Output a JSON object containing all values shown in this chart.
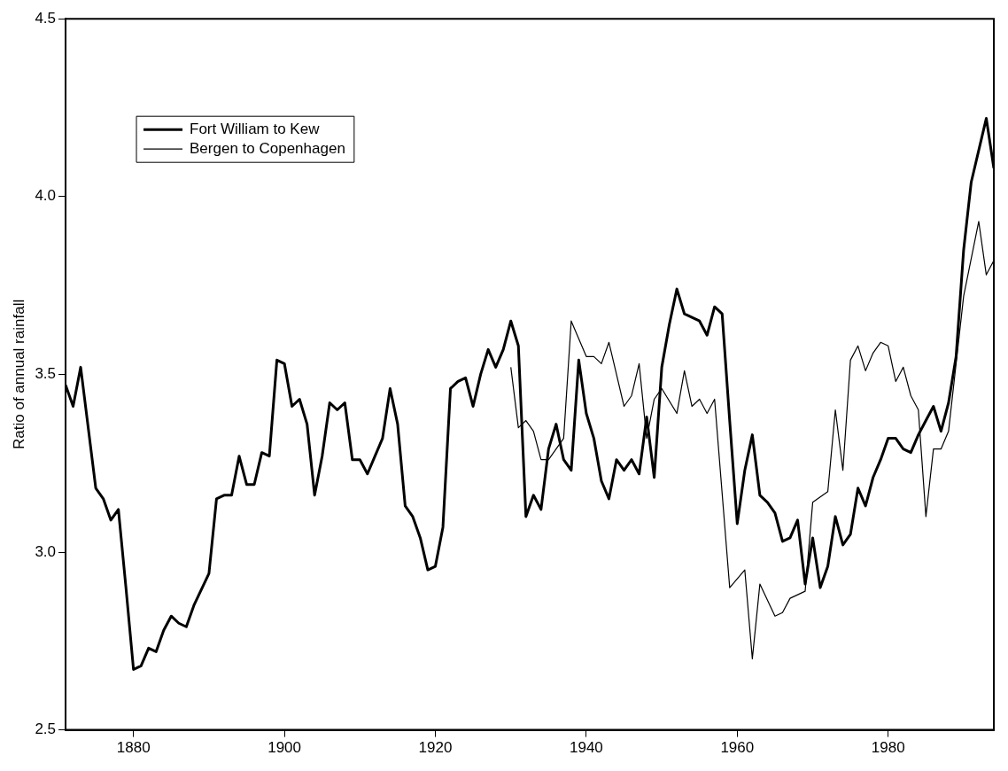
{
  "chart_data": {
    "type": "line",
    "ylabel": "Ratio of annual rainfall",
    "xlim": [
      1871,
      1994
    ],
    "xticks": [
      1880,
      1900,
      1920,
      1940,
      1960,
      1980
    ],
    "ylim": [
      2.5,
      4.5
    ],
    "yticks": [
      2.5,
      {
        "value": 3,
        "label": "3.0"
      },
      3.5,
      {
        "value": 4,
        "label": "4.0"
      },
      4.5
    ],
    "grid": false,
    "legend": "top left",
    "marker": "none",
    "line_style": "solid",
    "series": [
      {
        "name": "Fort William to Kew",
        "color": "#000000",
        "x": [
          1871,
          1872,
          1873,
          1875,
          1876,
          1877,
          1878,
          1879,
          1880,
          1881,
          1882,
          1883,
          1884,
          1885,
          1886,
          1887,
          1888,
          1890,
          1891,
          1892,
          1893,
          1894,
          1895,
          1896,
          1897,
          1898,
          1899,
          1900,
          1901,
          1902,
          1903,
          1904,
          1905,
          1906,
          1907,
          1908,
          1909,
          1910,
          1911,
          1912,
          1913,
          1914,
          1915,
          1916,
          1917,
          1918,
          1919,
          1920,
          1921,
          1922,
          1923,
          1924,
          1925,
          1926,
          1927,
          1928,
          1929,
          1930,
          1931,
          1932,
          1933,
          1934,
          1935,
          1936,
          1937,
          1938,
          1939,
          1940,
          1941,
          1942,
          1943,
          1944,
          1945,
          1946,
          1947,
          1948,
          1949,
          1950,
          1951,
          1952,
          1953,
          1954,
          1955,
          1956,
          1957,
          1958,
          1959,
          1960,
          1961,
          1962,
          1963,
          1964,
          1965,
          1966,
          1967,
          1968,
          1969,
          1970,
          1971,
          1972,
          1973,
          1974,
          1975,
          1976,
          1977,
          1978,
          1979,
          1980,
          1981,
          1982,
          1983,
          1984,
          1985,
          1986,
          1987,
          1988,
          1989,
          1990,
          1991,
          1992,
          1993,
          1994
        ],
        "values": [
          3.47,
          3.41,
          3.52,
          3.18,
          3.15,
          3.09,
          3.12,
          2.9,
          2.67,
          2.68,
          2.73,
          2.72,
          2.78,
          2.82,
          2.8,
          2.79,
          2.85,
          2.94,
          3.15,
          3.16,
          3.16,
          3.27,
          3.19,
          3.19,
          3.28,
          3.27,
          3.54,
          3.53,
          3.41,
          3.43,
          3.36,
          3.16,
          3.27,
          3.42,
          3.4,
          3.42,
          3.26,
          3.26,
          3.22,
          3.27,
          3.32,
          3.46,
          3.36,
          3.13,
          3.1,
          3.04,
          2.95,
          2.96,
          3.07,
          3.46,
          3.48,
          3.49,
          3.41,
          3.5,
          3.57,
          3.52,
          3.57,
          3.65,
          3.58,
          3.1,
          3.16,
          3.12,
          3.29,
          3.36,
          3.26,
          3.23,
          3.54,
          3.39,
          3.32,
          3.2,
          3.15,
          3.26,
          3.23,
          3.26,
          3.22,
          3.38,
          3.21,
          3.52,
          3.64,
          3.74,
          3.67,
          3.66,
          3.65,
          3.61,
          3.69,
          3.67,
          3.37,
          3.08,
          3.23,
          3.33,
          3.16,
          3.14,
          3.11,
          3.03,
          3.04,
          3.09,
          2.91,
          3.04,
          2.9,
          2.96,
          3.1,
          3.02,
          3.05,
          3.18,
          3.13,
          3.21,
          3.26,
          3.32,
          3.32,
          3.29,
          3.28,
          3.33,
          3.37,
          3.41,
          3.34,
          3.42,
          3.55,
          3.85,
          4.04,
          4.13,
          4.22,
          4.08
        ]
      },
      {
        "name": "Bergen to Copenhagen",
        "color": "#000000",
        "x": [
          1930,
          1931,
          1932,
          1933,
          1934,
          1935,
          1936,
          1937,
          1938,
          1939,
          1940,
          1941,
          1942,
          1943,
          1944,
          1945,
          1946,
          1947,
          1948,
          1949,
          1950,
          1952,
          1953,
          1954,
          1955,
          1956,
          1957,
          1959,
          1961,
          1962,
          1963,
          1965,
          1966,
          1967,
          1969,
          1970,
          1972,
          1973,
          1974,
          1975,
          1976,
          1977,
          1978,
          1979,
          1980,
          1981,
          1982,
          1983,
          1984,
          1985,
          1986,
          1987,
          1988,
          1990,
          1992,
          1993,
          1994
        ],
        "values": [
          3.52,
          3.35,
          3.37,
          3.34,
          3.26,
          3.26,
          3.29,
          3.32,
          3.65,
          3.6,
          3.55,
          3.55,
          3.53,
          3.59,
          3.5,
          3.41,
          3.44,
          3.53,
          3.32,
          3.43,
          3.46,
          3.39,
          3.51,
          3.41,
          3.43,
          3.39,
          3.43,
          2.9,
          2.95,
          2.7,
          2.91,
          2.82,
          2.83,
          2.87,
          2.89,
          3.14,
          3.17,
          3.4,
          3.23,
          3.54,
          3.58,
          3.51,
          3.56,
          3.59,
          3.58,
          3.48,
          3.52,
          3.44,
          3.4,
          3.1,
          3.29,
          3.29,
          3.34,
          3.72,
          3.93,
          3.78,
          3.82
        ]
      }
    ]
  }
}
